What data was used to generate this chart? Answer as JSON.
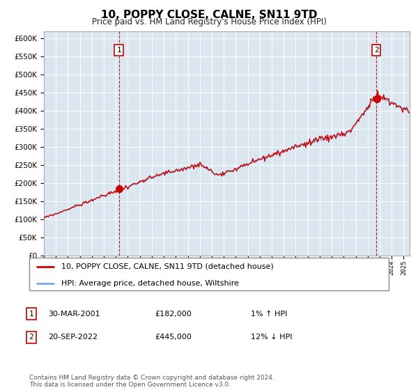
{
  "title": "10, POPPY CLOSE, CALNE, SN11 9TD",
  "subtitle": "Price paid vs. HM Land Registry's House Price Index (HPI)",
  "title_fontsize": 11,
  "subtitle_fontsize": 9,
  "background_color": "#dce6f0",
  "plot_bg_color": "#dce6f0",
  "hpi_line_color": "#7aaadd",
  "price_line_color": "#cc0000",
  "marker_color": "#cc0000",
  "dashed_line_color": "#cc0000",
  "annotation_box_color": "#cc0000",
  "ylim": [
    0,
    620000
  ],
  "ytick_step": 50000,
  "sale1": {
    "date_num": 2001.25,
    "price": 182000,
    "label": "1"
  },
  "sale2": {
    "date_num": 2022.72,
    "price": 445000,
    "label": "2"
  },
  "legend_entries": [
    "10, POPPY CLOSE, CALNE, SN11 9TD (detached house)",
    "HPI: Average price, detached house, Wiltshire"
  ],
  "table_rows": [
    {
      "label": "1",
      "date": "30-MAR-2001",
      "price": "£182,000",
      "change": "1% ↑ HPI"
    },
    {
      "label": "2",
      "date": "20-SEP-2022",
      "price": "£445,000",
      "change": "12% ↓ HPI"
    }
  ],
  "footnote": "Contains HM Land Registry data © Crown copyright and database right 2024.\nThis data is licensed under the Open Government Licence v3.0.",
  "xlim_start": 1995.0,
  "xlim_end": 2025.5
}
